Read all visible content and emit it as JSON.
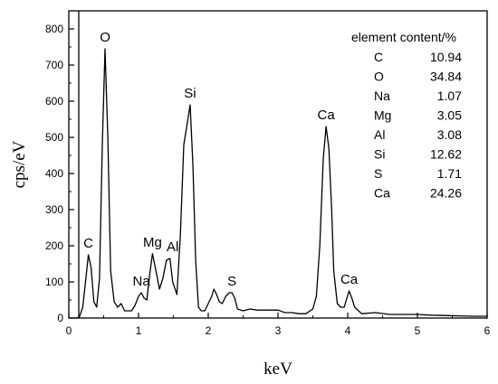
{
  "chart_data": {
    "type": "line",
    "xlabel": "keV",
    "ylabel": "cps/eV",
    "xlim": [
      0,
      6
    ],
    "ylim": [
      0,
      850
    ],
    "x_ticks": [
      0,
      1,
      2,
      3,
      4,
      5,
      6
    ],
    "y_ticks": [
      0,
      100,
      200,
      300,
      400,
      500,
      600,
      700,
      800
    ],
    "grid": false,
    "series": [
      {
        "x": [
          0.0,
          0.1,
          0.15,
          0.2,
          0.25,
          0.28,
          0.32,
          0.36,
          0.4,
          0.44,
          0.48,
          0.52,
          0.56,
          0.6,
          0.65,
          0.7,
          0.75,
          0.8,
          0.85,
          0.9,
          0.95,
          1.0,
          1.04,
          1.08,
          1.12,
          1.16,
          1.2,
          1.25,
          1.3,
          1.35,
          1.4,
          1.45,
          1.49,
          1.55,
          1.6,
          1.65,
          1.7,
          1.74,
          1.78,
          1.82,
          1.86,
          1.9,
          1.95,
          2.0,
          2.05,
          2.08,
          2.12,
          2.16,
          2.2,
          2.25,
          2.3,
          2.34,
          2.38,
          2.42,
          2.5,
          2.6,
          2.7,
          2.8,
          2.9,
          3.0,
          3.1,
          3.2,
          3.3,
          3.4,
          3.5,
          3.55,
          3.6,
          3.65,
          3.69,
          3.73,
          3.77,
          3.8,
          3.85,
          3.9,
          3.95,
          4.02,
          4.06,
          4.1,
          4.2,
          4.4,
          4.6,
          4.8,
          5.0,
          5.2,
          5.4,
          5.6,
          5.8,
          6.0
        ],
        "y": [
          0,
          0,
          2,
          30,
          120,
          175,
          140,
          45,
          30,
          110,
          480,
          745,
          500,
          130,
          45,
          30,
          40,
          20,
          20,
          20,
          35,
          60,
          70,
          55,
          50,
          120,
          178,
          130,
          80,
          110,
          160,
          165,
          100,
          65,
          230,
          480,
          540,
          590,
          420,
          160,
          30,
          20,
          20,
          40,
          60,
          80,
          65,
          45,
          40,
          60,
          70,
          70,
          55,
          25,
          20,
          25,
          22,
          22,
          22,
          22,
          15,
          15,
          12,
          12,
          25,
          60,
          200,
          440,
          530,
          470,
          300,
          130,
          40,
          30,
          30,
          75,
          55,
          30,
          12,
          15,
          10,
          10,
          10,
          8,
          7,
          6,
          5,
          5
        ]
      }
    ],
    "peak_labels": [
      {
        "text": "O",
        "x": 0.52,
        "y": 745
      },
      {
        "text": "C",
        "x": 0.28,
        "y": 175
      },
      {
        "text": "Na",
        "x": 1.04,
        "y": 70
      },
      {
        "text": "Mg",
        "x": 1.2,
        "y": 178
      },
      {
        "text": "Al",
        "x": 1.49,
        "y": 165
      },
      {
        "text": "Si",
        "x": 1.74,
        "y": 590
      },
      {
        "text": "S",
        "x": 2.34,
        "y": 70
      },
      {
        "text": "Ca",
        "x": 3.69,
        "y": 530
      },
      {
        "text": "Ca",
        "x": 4.02,
        "y": 75
      }
    ],
    "table": {
      "header": "element content/%",
      "rows": [
        {
          "element": "C",
          "content": "10.94"
        },
        {
          "element": "O",
          "content": "34.84"
        },
        {
          "element": "Na",
          "content": "1.07"
        },
        {
          "element": "Mg",
          "content": "3.05"
        },
        {
          "element": "Al",
          "content": "3.08"
        },
        {
          "element": "Si",
          "content": "12.62"
        },
        {
          "element": "S",
          "content": "1.71"
        },
        {
          "element": "Ca",
          "content": "24.26"
        }
      ]
    }
  }
}
